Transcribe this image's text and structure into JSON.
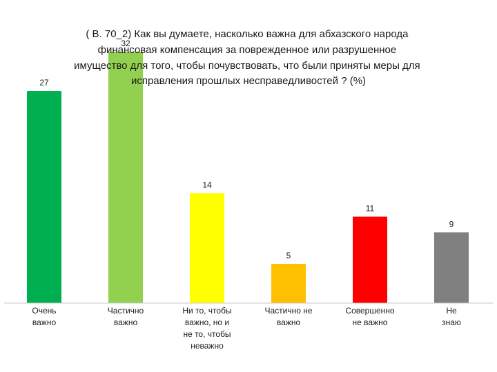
{
  "chart_data": {
    "type": "bar",
    "title_lines": [
      "( B. 70_2) Как вы думаете, насколько важна для абхазского народа",
      "финансовая компенсация за поврежденное или разрушенное",
      "имущество для того, чтобы почувствовать, что были приняты меры для",
      "исправления прошлых несправедливостей ? (%)"
    ],
    "categories": [
      [
        "Очень",
        "важно"
      ],
      [
        "Частично",
        "важно"
      ],
      [
        "Ни то, чтобы",
        "важно, но и",
        "не то,  чтобы",
        "неважно"
      ],
      [
        "Частично не",
        "важно"
      ],
      [
        "Совершенно",
        "не важно"
      ],
      [
        "Не",
        "знаю"
      ]
    ],
    "values": [
      27,
      32,
      14,
      5,
      11,
      9
    ],
    "colors": [
      "#00b050",
      "#92d050",
      "#ffff00",
      "#ffc000",
      "#ff0000",
      "#808080"
    ],
    "ylim": [
      0,
      32
    ],
    "grid": false,
    "legend": "none"
  }
}
